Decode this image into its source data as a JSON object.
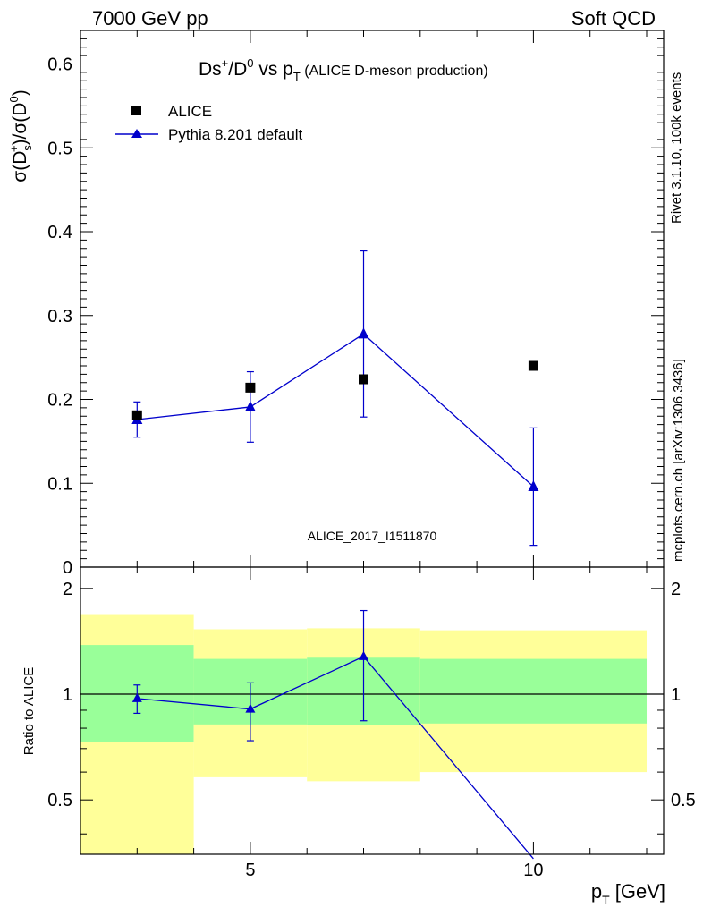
{
  "header": {
    "left": "7000 GeV pp",
    "right": "Soft QCD"
  },
  "side_text": {
    "rivet": "Rivet 3.1.10,  100k events",
    "mcplots": "mcplots.cern.ch [arXiv:1306.3436]"
  },
  "title": {
    "main": "Ds",
    "sup": "+",
    "mid": "/D",
    "sup2": "0",
    "vs": " vs p",
    "sub": "T",
    "paren": " (ALICE D-meson production)"
  },
  "ylabel_main": {
    "a": "σ(D",
    "sub": "s",
    "sup": "+",
    "b": ")/σ(D",
    "sup2": "0",
    "c": ")"
  },
  "ylabel_ratio": "Ratio to ALICE",
  "xlabel": {
    "a": "p",
    "sub": "T",
    "b": " [GeV]"
  },
  "watermark": "ALICE_2017_I1511870",
  "legend": {
    "data": "ALICE",
    "mc": "Pythia 8.201 default"
  },
  "colors": {
    "data": "#000000",
    "mc": "#0000cc",
    "band_inner": "#99ff99",
    "band_outer": "#ffff99",
    "watermark": "#999999",
    "side": "#808080"
  },
  "chart_data": [
    {
      "type": "scatter",
      "panel": "main",
      "xlim": [
        2,
        12.3
      ],
      "ylim": [
        0,
        0.64
      ],
      "yticks": [
        0,
        0.1,
        0.2,
        0.3,
        0.4,
        0.5,
        0.6
      ],
      "ytick_labels": [
        "0",
        "0.1",
        "0.2",
        "0.3",
        "0.4",
        "0.5",
        "0.6"
      ],
      "series": [
        {
          "name": "ALICE",
          "marker": "square",
          "x": [
            3,
            5,
            7,
            10
          ],
          "y": [
            0.181,
            0.214,
            0.224,
            0.24
          ]
        },
        {
          "name": "Pythia 8.201 default",
          "marker": "triangle",
          "line": true,
          "x": [
            3,
            5,
            7,
            10
          ],
          "y": [
            0.176,
            0.191,
            0.278,
            0.096
          ],
          "yerr_low": [
            0.021,
            0.042,
            0.099,
            0.07
          ],
          "yerr_high": [
            0.021,
            0.042,
            0.099,
            0.07
          ]
        }
      ]
    },
    {
      "type": "line",
      "panel": "ratio",
      "ylabel": "Ratio to ALICE",
      "xlim": [
        2,
        12.3
      ],
      "ylim": [
        0.35,
        2.3
      ],
      "yscale": "log",
      "yticks": [
        0.5,
        1,
        2
      ],
      "ytick_labels": [
        "0.5",
        "1",
        "2"
      ],
      "xticks": [
        5,
        10
      ],
      "xtick_labels": [
        "5",
        "10"
      ],
      "bands": [
        {
          "x0": 2,
          "x1": 4,
          "inner": [
            0.73,
            1.38
          ],
          "outer": [
            0.35,
            1.69
          ]
        },
        {
          "x0": 4,
          "x1": 6,
          "inner": [
            0.82,
            1.26
          ],
          "outer": [
            0.58,
            1.53
          ]
        },
        {
          "x0": 6,
          "x1": 8,
          "inner": [
            0.815,
            1.27
          ],
          "outer": [
            0.565,
            1.54
          ]
        },
        {
          "x0": 8,
          "x1": 12,
          "inner": [
            0.825,
            1.26
          ],
          "outer": [
            0.6,
            1.52
          ]
        }
      ],
      "series": [
        {
          "name": "Pythia 8.201 default",
          "x": [
            3,
            5,
            7,
            10
          ],
          "y": [
            0.972,
            0.907,
            1.28,
            0.34
          ],
          "yerr_low": [
            0.09,
            0.17,
            0.44,
            0.0
          ],
          "yerr_high": [
            0.09,
            0.17,
            0.45,
            0.0
          ]
        }
      ]
    }
  ]
}
